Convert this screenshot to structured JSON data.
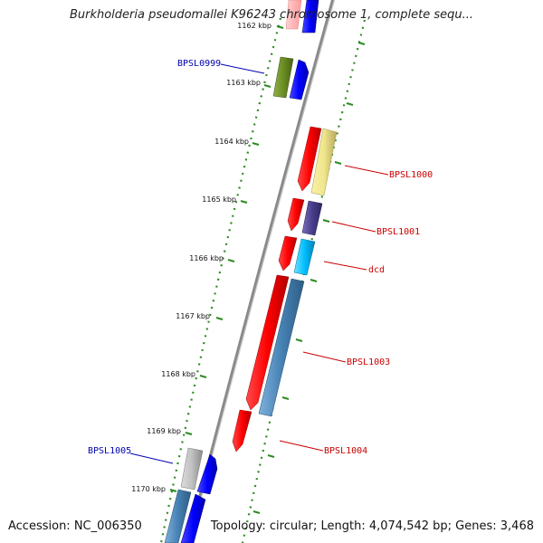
{
  "title": "Burkholderia pseudomallei K96243 chromosome 1, complete sequ...",
  "footer": {
    "accession": "Accession: NC_006350",
    "summary": "Topology: circular; Length: 4,074,542 bp; Genes: 3,468"
  },
  "colors": {
    "backbone": "#8a8a8a",
    "tick": "#2e8b22",
    "label_forward": "#0000b0",
    "label_reverse": "#cc0000"
  },
  "scale": {
    "unit": "kbp",
    "ticks": [
      {
        "label": "1162 kbp"
      },
      {
        "label": "1163 kbp"
      },
      {
        "label": "1164 kbp"
      },
      {
        "label": "1165 kbp"
      },
      {
        "label": "1166 kbp"
      },
      {
        "label": "1167 kbp"
      },
      {
        "label": "1168 kbp"
      },
      {
        "label": "1169 kbp"
      },
      {
        "label": "1170 kbp"
      }
    ]
  },
  "gene_labels": [
    {
      "name": "BPSL0999",
      "strand": "forward"
    },
    {
      "name": "BPSL1000",
      "strand": "reverse"
    },
    {
      "name": "BPSL1001",
      "strand": "reverse"
    },
    {
      "name": "dcd",
      "strand": "reverse"
    },
    {
      "name": "BPSL1003",
      "strand": "reverse"
    },
    {
      "name": "BPSL1004",
      "strand": "reverse"
    },
    {
      "name": "BPSL1005",
      "strand": "forward"
    }
  ]
}
